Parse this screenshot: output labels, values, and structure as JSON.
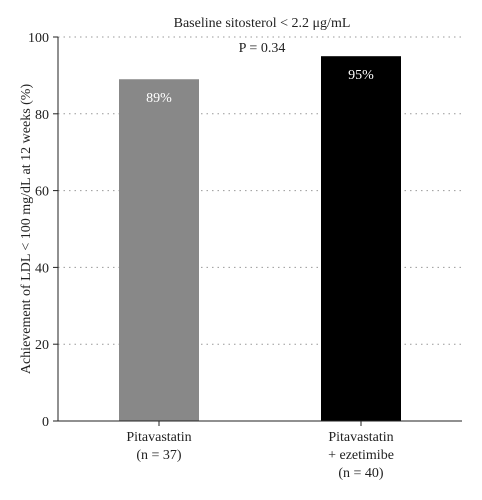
{
  "chart_data": {
    "type": "bar",
    "annotations": [
      "Baseline sitosterol < 2.2 μg/mL",
      "P = 0.34"
    ],
    "ylabel": "Achievement of LDL < 100 mg/dL at 12 weeks (%)",
    "ylim": [
      0,
      100
    ],
    "yticks": [
      0,
      20,
      40,
      60,
      80,
      100
    ],
    "grid": true,
    "categories": [
      {
        "lines": [
          "Pitavastatin",
          "(n = 37)"
        ]
      },
      {
        "lines": [
          "Pitavastatin",
          "+ ezetimibe",
          "(n = 40)"
        ]
      }
    ],
    "values": [
      89,
      95
    ],
    "value_labels": [
      "89%",
      "95%"
    ],
    "colors": [
      "#888888",
      "#000000"
    ]
  }
}
